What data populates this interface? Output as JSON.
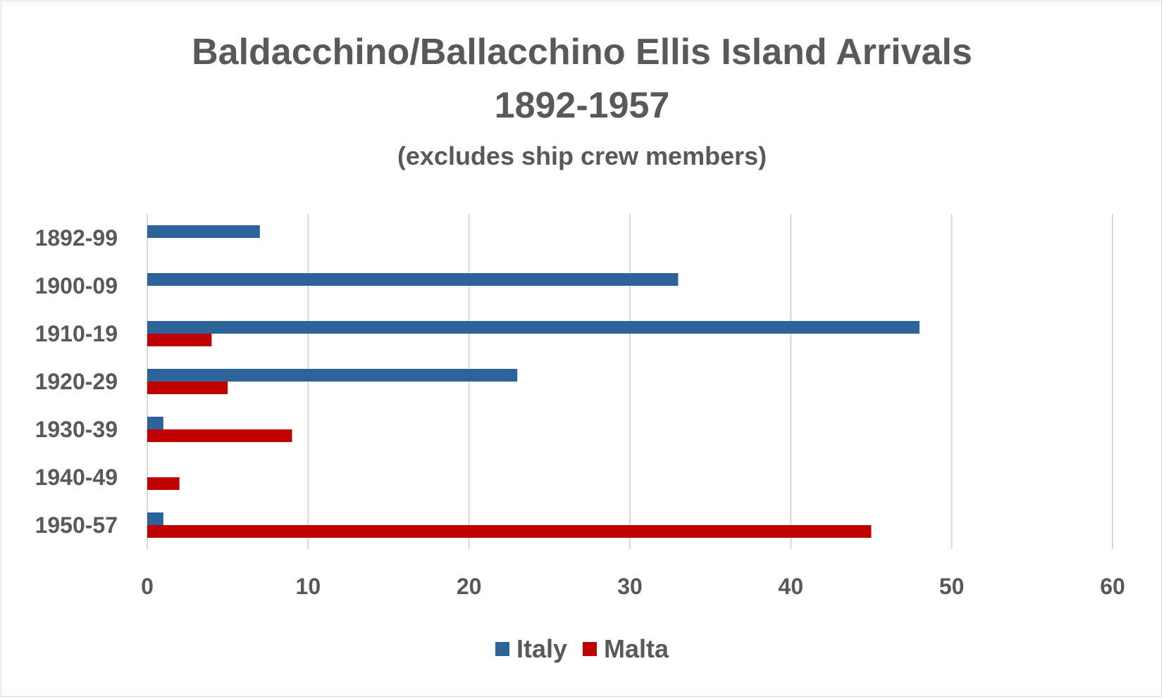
{
  "chart_data": {
    "type": "bar",
    "orientation": "horizontal",
    "title": "Baldacchino/Ballacchino Ellis Island Arrivals",
    "title_line2": "1892-1957",
    "subtitle": "(excludes ship crew members)",
    "categories": [
      "1892-99",
      "1900-09",
      "1910-19",
      "1920-29",
      "1930-39",
      "1940-49",
      "1950-57"
    ],
    "series": [
      {
        "name": "Italy",
        "color": "#2e6399",
        "values": [
          7,
          33,
          48,
          23,
          1,
          0,
          1
        ]
      },
      {
        "name": "Malta",
        "color": "#c00000",
        "values": [
          0,
          0,
          4,
          5,
          9,
          2,
          45
        ]
      }
    ],
    "xlim": [
      0,
      60
    ],
    "xticks": [
      0,
      10,
      20,
      30,
      40,
      50,
      60
    ],
    "grid": true,
    "legend_position": "bottom"
  }
}
